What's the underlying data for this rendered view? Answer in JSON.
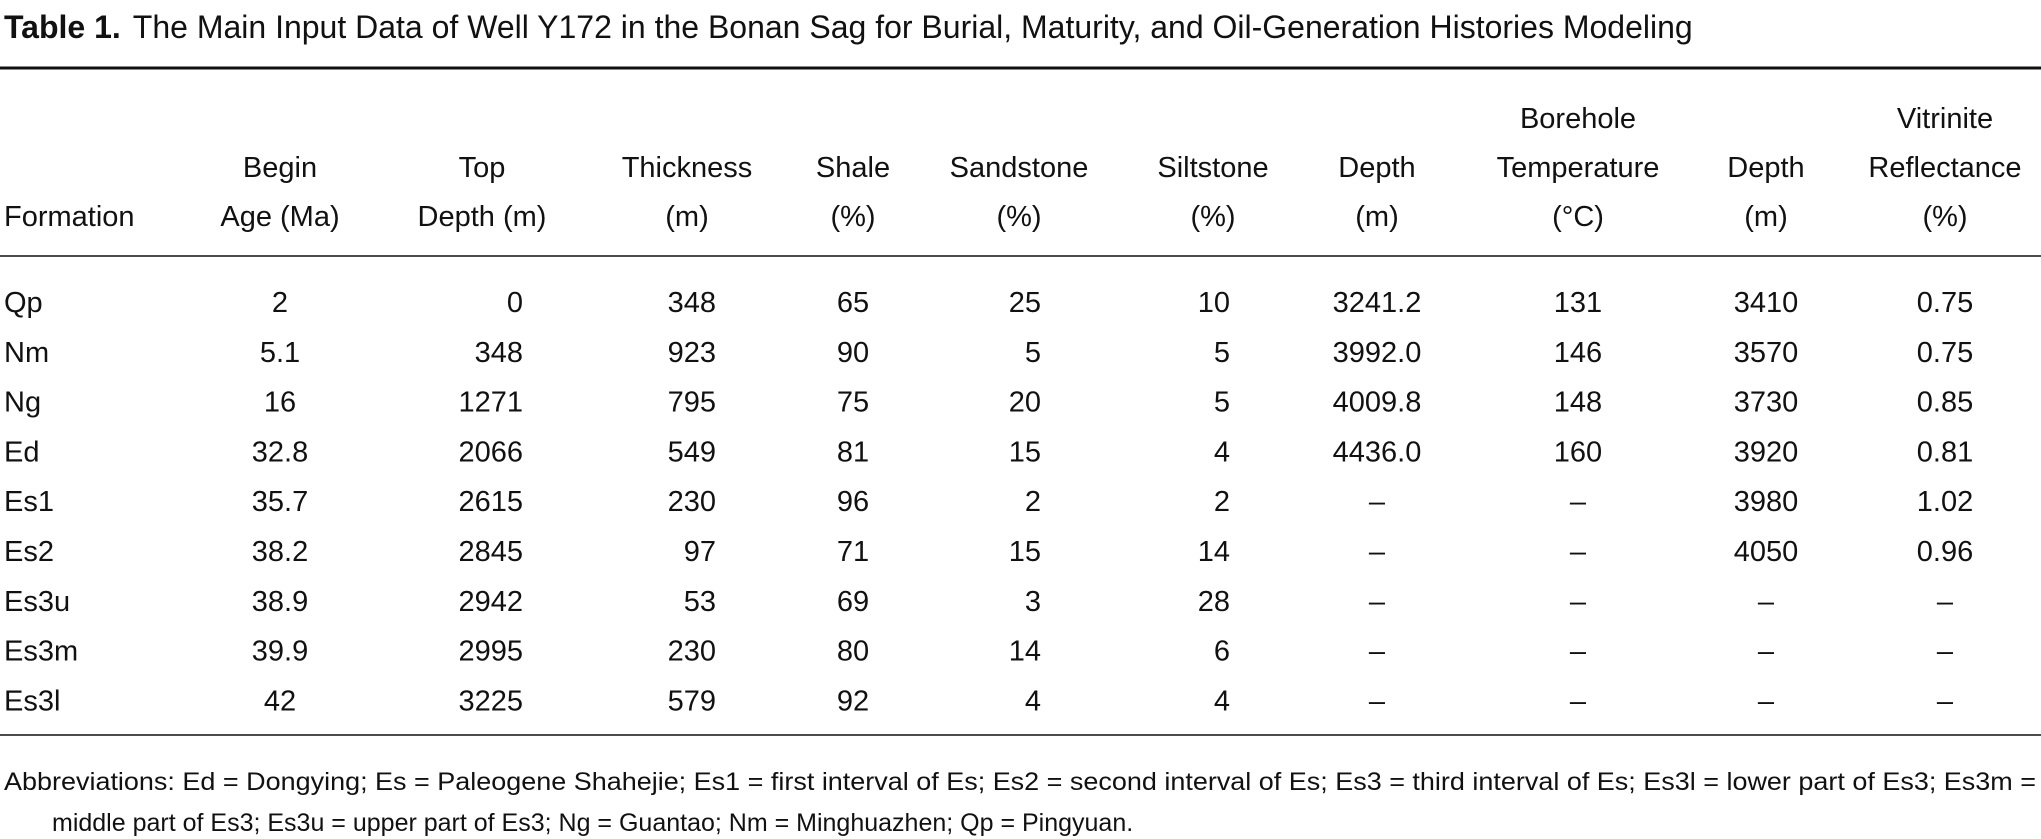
{
  "title": {
    "label": "Table 1.",
    "text": "The Main Input Data of Well Y172 in the Bonan Sag for Burial, Maturity, and Oil-Generation Histories Modeling"
  },
  "table": {
    "columns": [
      [
        "Formation"
      ],
      [
        "Begin",
        "Age (Ma)"
      ],
      [
        "Top",
        "Depth (m)"
      ],
      [
        "Thickness",
        "(m)"
      ],
      [
        "Shale",
        "(%)"
      ],
      [
        "Sandstone",
        "(%)"
      ],
      [
        "Siltstone",
        "(%)"
      ],
      [
        "Depth",
        "(m)"
      ],
      [
        "Borehole",
        "Temperature",
        "(°C)"
      ],
      [
        "Depth",
        "(m)"
      ],
      [
        "Vitrinite",
        "Reflectance",
        "(%)"
      ]
    ],
    "rows": [
      [
        "Qp",
        "2",
        "0",
        "348",
        "65",
        "25",
        "10",
        "3241.2",
        "131",
        "3410",
        "0.75"
      ],
      [
        "Nm",
        "5.1",
        "348",
        "923",
        "90",
        "5",
        "5",
        "3992.0",
        "146",
        "3570",
        "0.75"
      ],
      [
        "Ng",
        "16",
        "1271",
        "795",
        "75",
        "20",
        "5",
        "4009.8",
        "148",
        "3730",
        "0.85"
      ],
      [
        "Ed",
        "32.8",
        "2066",
        "549",
        "81",
        "15",
        "4",
        "4436.0",
        "160",
        "3920",
        "0.81"
      ],
      [
        "Es1",
        "35.7",
        "2615",
        "230",
        "96",
        "2",
        "2",
        "–",
        "–",
        "3980",
        "1.02"
      ],
      [
        "Es2",
        "38.2",
        "2845",
        "97",
        "71",
        "15",
        "14",
        "–",
        "–",
        "4050",
        "0.96"
      ],
      [
        "Es3u",
        "38.9",
        "2942",
        "53",
        "69",
        "3",
        "28",
        "–",
        "–",
        "–",
        "–"
      ],
      [
        "Es3m",
        "39.9",
        "2995",
        "230",
        "80",
        "14",
        "6",
        "–",
        "–",
        "–",
        "–"
      ],
      [
        "Es3l",
        "42",
        "3225",
        "579",
        "92",
        "4",
        "4",
        "–",
        "–",
        "–",
        "–"
      ]
    ]
  },
  "footnote": [
    "Abbreviations: Ed = Dongying; Es = Paleogene Shahejie; Es1 = first interval of Es; Es2 = second interval of Es; Es3 = third interval of Es; Es3l = lower part of Es3; Es3m =",
    "middle part of Es3; Es3u = upper part of Es3; Ng = Guantao; Nm = Minghuazhen; Qp = Pingyuan."
  ]
}
